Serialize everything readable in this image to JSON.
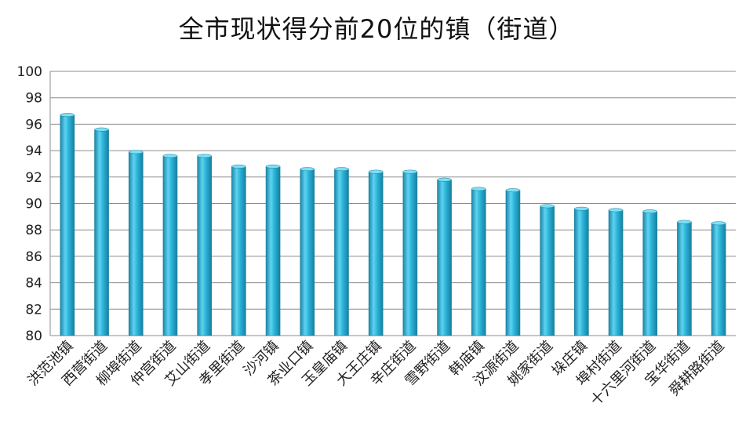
{
  "chart_data": {
    "type": "bar",
    "title": "全市现状得分前20位的镇（街道）",
    "xlabel": "",
    "ylabel": "",
    "ylim": [
      80,
      100
    ],
    "yticks": [
      80,
      82,
      84,
      86,
      88,
      90,
      92,
      94,
      96,
      98,
      100
    ],
    "grid": true,
    "legend": "none",
    "bar_color": "#2BB3D9",
    "categories": [
      "洪范池镇",
      "西营街道",
      "柳埠街道",
      "仲宫街道",
      "艾山街道",
      "孝里街道",
      "沙河镇",
      "茶业口镇",
      "玉皇庙镇",
      "大王庄镇",
      "辛庄街道",
      "雪野街道",
      "韩庙镇",
      "汶源街道",
      "姚家街道",
      "垛庄镇",
      "埠村街道",
      "十六里河街道",
      "宝华街道",
      "舜耕路街道"
    ],
    "values": [
      96.7,
      95.6,
      93.9,
      93.6,
      93.6,
      92.8,
      92.8,
      92.6,
      92.6,
      92.4,
      92.4,
      91.8,
      91.1,
      91.0,
      89.8,
      89.6,
      89.5,
      89.4,
      88.6,
      88.5
    ]
  }
}
